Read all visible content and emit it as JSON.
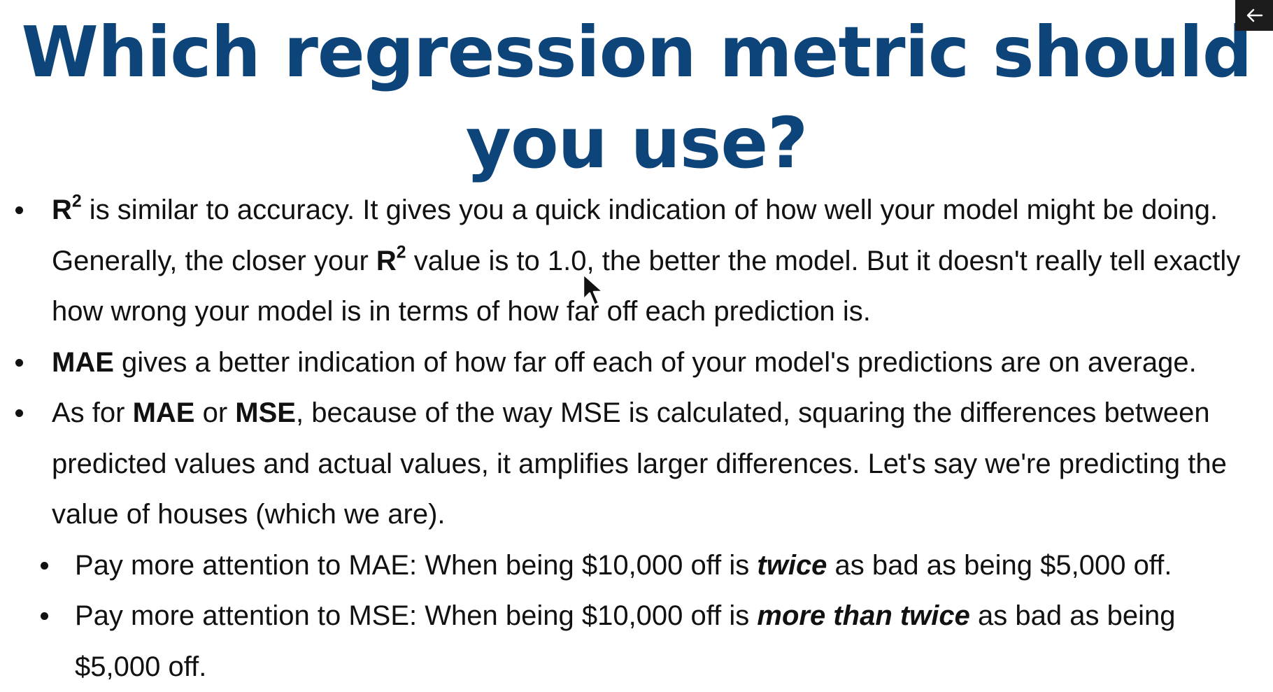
{
  "slide": {
    "title": "Which regression metric should you use?",
    "bullets": [
      {
        "level": 1,
        "parts": [
          {
            "text": "R",
            "style": "bold"
          },
          {
            "text": "2",
            "style": "sup"
          },
          {
            "text": " is similar to accuracy. It gives you a quick indication of how well your model might be doing. Generally, the closer your ",
            "style": "normal"
          },
          {
            "text": "R",
            "style": "bold"
          },
          {
            "text": "2",
            "style": "sup"
          },
          {
            "text": " value is to 1.0, the better the model. But it doesn't really tell exactly how wrong your model is in terms of how far off each prediction is.",
            "style": "normal"
          }
        ]
      },
      {
        "level": 1,
        "parts": [
          {
            "text": "MAE",
            "style": "bold"
          },
          {
            "text": " gives a better indication of how far off each of your model's predictions are on average.",
            "style": "normal"
          }
        ]
      },
      {
        "level": 1,
        "parts": [
          {
            "text": "As for ",
            "style": "normal"
          },
          {
            "text": "MAE",
            "style": "bold"
          },
          {
            "text": " or ",
            "style": "normal"
          },
          {
            "text": "MSE",
            "style": "bold"
          },
          {
            "text": ", because of the way MSE is calculated, squaring the differences between predicted values and actual values, it amplifies larger differences. Let's say we're predicting the value of houses (which we are).",
            "style": "normal"
          }
        ]
      },
      {
        "level": 2,
        "parts": [
          {
            "text": "Pay more attention to MAE: When being $10,000 off is ",
            "style": "normal"
          },
          {
            "text": "twice",
            "style": "bolditalic"
          },
          {
            "text": " as bad as being $5,000 off.",
            "style": "normal"
          }
        ]
      },
      {
        "level": 2,
        "parts": [
          {
            "text": "Pay more attention to MSE: When being $10,000 off is ",
            "style": "normal"
          },
          {
            "text": "more than twice",
            "style": "bolditalic"
          },
          {
            "text": " as bad as being $5,000 off.",
            "style": "normal"
          }
        ]
      }
    ]
  },
  "colors": {
    "title": "#0d4479",
    "text": "#111111",
    "background": "#ffffff",
    "back_button_bg": "#1c1c1c"
  },
  "icons": {
    "back": "arrow-left-icon",
    "cursor": "mouse-pointer-icon"
  }
}
